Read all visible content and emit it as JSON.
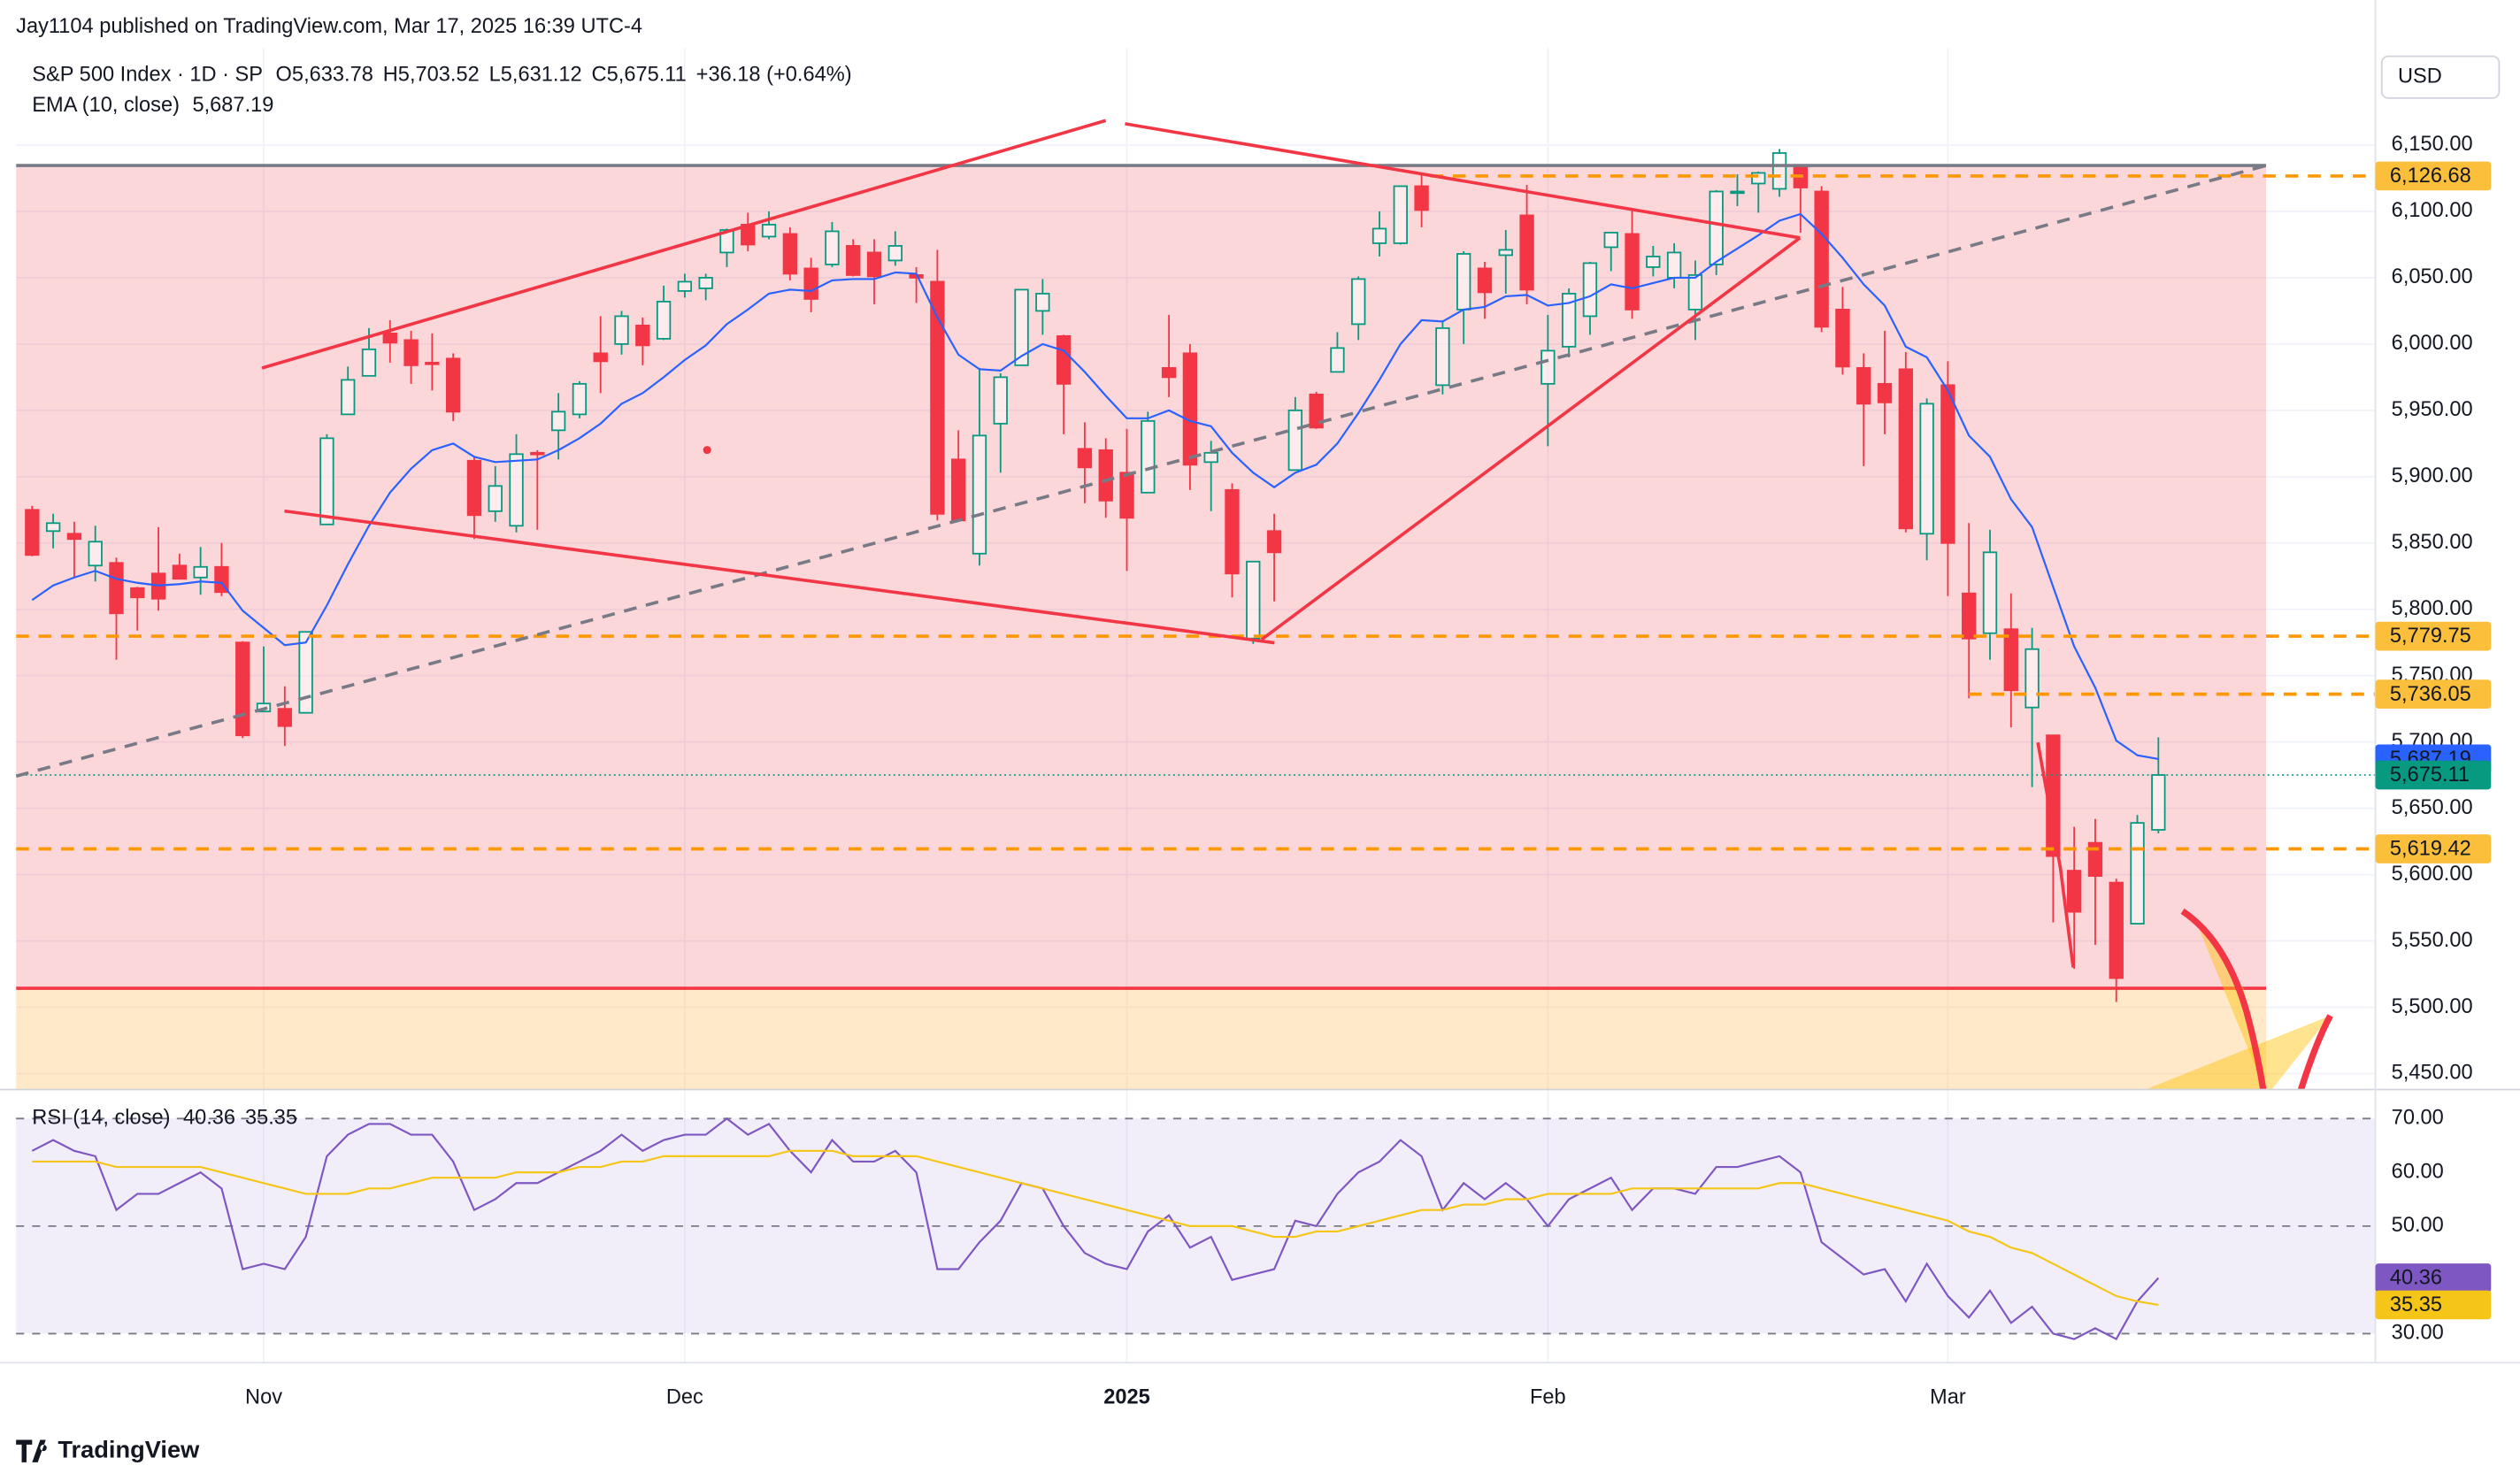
{
  "published": "Jay1104 published on TradingView.com, Mar 17, 2025 16:39 UTC-4",
  "currency": "USD",
  "brand": "TradingView",
  "chart_data": [
    {
      "type": "candlestick",
      "title": "S&P 500 Index · 1D · SP",
      "ohlc_legend": [
        {
          "key": "O",
          "text": "5,633.78"
        },
        {
          "key": "H",
          "text": "5,703.52"
        },
        {
          "key": "L",
          "text": "5,631.12"
        },
        {
          "key": "C",
          "text": "5,675.11"
        }
      ],
      "change": "+36.18 (+0.64%)",
      "categories": [
        null,
        null,
        null,
        null,
        null,
        null,
        null,
        null,
        null,
        null,
        null,
        "Nov",
        null,
        null,
        null,
        null,
        null,
        null,
        null,
        null,
        null,
        null,
        null,
        null,
        null,
        null,
        null,
        null,
        null,
        null,
        null,
        "Dec",
        null,
        null,
        null,
        null,
        null,
        null,
        null,
        null,
        null,
        null,
        null,
        null,
        null,
        null,
        null,
        null,
        null,
        null,
        null,
        null,
        "2025",
        null,
        null,
        null,
        null,
        null,
        null,
        null,
        null,
        null,
        null,
        null,
        null,
        null,
        null,
        null,
        null,
        null,
        null,
        null,
        "Feb",
        null,
        null,
        null,
        null,
        null,
        null,
        null,
        null,
        null,
        null,
        null,
        null,
        null,
        null,
        null,
        null,
        null,
        null,
        "Mar",
        null,
        null,
        null,
        null,
        null,
        null,
        null,
        null,
        null,
        null
      ],
      "open": [
        5875,
        5859,
        5857,
        5833,
        5835,
        5816,
        5827,
        5833,
        5824,
        5832,
        5775,
        5723,
        5725,
        5722,
        5864,
        5947,
        5976,
        6008,
        6003,
        5986,
        5989,
        5912,
        5874,
        5863,
        5918,
        5935,
        5947,
        5993,
        6000,
        6014,
        6004,
        6040,
        6042,
        6069,
        6090,
        6081,
        6083,
        6057,
        6060,
        6074,
        6069,
        6063,
        6052,
        6047,
        5913,
        5842,
        5940,
        5984,
        6025,
        6006,
        5921,
        5920,
        5903,
        5888,
        5982,
        5993,
        5911,
        5890,
        5778,
        5859,
        5905,
        5962,
        5979,
        6015,
        6076,
        6076,
        6119,
        5969,
        6026,
        6057,
        6067,
        6097,
        5970,
        5998,
        6021,
        6073,
        6083,
        6058,
        6050,
        6026,
        6060,
        6115,
        6121,
        6117,
        6134,
        6115,
        6026,
        5982,
        5970,
        5981,
        5857,
        5969,
        5812,
        5782,
        5785,
        5726,
        5705,
        5603,
        5624,
        5594,
        5563,
        5633.78
      ],
      "high": [
        5878,
        5872,
        5866,
        5863,
        5839,
        5817,
        5862,
        5842,
        5847,
        5850,
        5776,
        5772,
        5742,
        5783,
        5932,
        5983,
        6012,
        6018,
        6010,
        6008,
        5993,
        5915,
        5908,
        5932,
        5920,
        5963,
        5972,
        6021,
        6025,
        6020,
        6044,
        6053,
        6053,
        6087,
        6099,
        6100,
        6088,
        6065,
        6092,
        6079,
        6079,
        6085,
        6058,
        6071,
        5935,
        5982,
        5978,
        6041,
        6049,
        6007,
        5941,
        5929,
        5936,
        5949,
        6022,
        6000,
        5927,
        5895,
        5836,
        5872,
        5960,
        5964,
        6009,
        6051,
        6100,
        6119,
        6128,
        6018,
        6070,
        6062,
        6086,
        6120,
        6022,
        6042,
        6062,
        6084,
        6101,
        6074,
        6076,
        6063,
        6116,
        6128,
        6130,
        6147,
        6134,
        6119,
        6043,
        5993,
        6010,
        5994,
        5959,
        5987,
        5865,
        5860,
        5812,
        5786,
        5705,
        5636,
        5642,
        5597,
        5645,
        5703.52
      ],
      "low": [
        5840,
        5846,
        5824,
        5821,
        5762,
        5784,
        5799,
        5823,
        5811,
        5810,
        5703,
        5723,
        5697,
        5722,
        5864,
        5947,
        5976,
        5986,
        5970,
        5965,
        5942,
        5853,
        5866,
        5858,
        5860,
        5913,
        5944,
        5963,
        5992,
        5984,
        6003,
        6035,
        6033,
        6058,
        6070,
        6079,
        6048,
        6024,
        6058,
        6051,
        6030,
        6059,
        6031,
        5867,
        5866,
        5833,
        5903,
        5984,
        6007,
        5932,
        5880,
        5869,
        5829,
        5888,
        5960,
        5890,
        5874,
        5809,
        5774,
        5806,
        5905,
        5936,
        5979,
        6003,
        6066,
        6075,
        6088,
        5962,
        6000,
        6019,
        6038,
        6030,
        5923,
        5990,
        6007,
        6055,
        6019,
        6051,
        6042,
        6003,
        6052,
        6104,
        6099,
        6111,
        6084,
        6009,
        5977,
        5908,
        5932,
        5858,
        5837,
        5810,
        5733,
        5762,
        5711,
        5666,
        5564,
        5529,
        5547,
        5504,
        5563,
        5631.12
      ],
      "close": [
        5841,
        5865,
        5853,
        5851,
        5797,
        5809,
        5808,
        5823,
        5832,
        5813,
        5705,
        5729,
        5712,
        5783,
        5929,
        5973,
        5996,
        6001,
        5984,
        5985,
        5949,
        5871,
        5893,
        5917,
        5917,
        5949,
        5970,
        5987,
        6021,
        5999,
        6032,
        6047,
        6050,
        6086,
        6075,
        6090,
        6053,
        6034,
        6085,
        6052,
        6051,
        6074,
        6050,
        5872,
        5867,
        5931,
        5975,
        6041,
        6038,
        5970,
        5907,
        5882,
        5869,
        5942,
        5975,
        5909,
        5918,
        5827,
        5836,
        5843,
        5950,
        5937,
        5997,
        6049,
        6087,
        6119,
        6101,
        6012,
        6068,
        6039,
        6071,
        6041,
        5995,
        6038,
        6061,
        6084,
        6026,
        6066,
        6069,
        6052,
        6115,
        6115,
        6129,
        6144,
        6118,
        6013,
        5983,
        5955,
        5956,
        5861,
        5955,
        5850,
        5778,
        5843,
        5739,
        5770,
        5614,
        5572,
        5599,
        5522,
        5639,
        5675.11
      ],
      "close_label": "5,675.11",
      "up_color": "#089981",
      "down_color": "#f23645",
      "series": [
        {
          "name": "EMA (10, close)",
          "color": "#2962ff",
          "last_label": "5,687.19",
          "values": [
            5807,
            5818,
            5824,
            5829,
            5823,
            5820,
            5818,
            5819,
            5821,
            5820,
            5799,
            5786,
            5773,
            5775,
            5803,
            5834,
            5863,
            5888,
            5906,
            5920,
            5925,
            5915,
            5911,
            5912,
            5913,
            5920,
            5929,
            5940,
            5955,
            5963,
            5975,
            5988,
            5999,
            6015,
            6026,
            6038,
            6041,
            6040,
            6048,
            6049,
            6049,
            6054,
            6053,
            6020,
            5992,
            5981,
            5980,
            5991,
            6000,
            5995,
            5979,
            5961,
            5944,
            5944,
            5950,
            5942,
            5938,
            5918,
            5903,
            5892,
            5903,
            5909,
            5925,
            5948,
            5973,
            6000,
            6018,
            6017,
            6026,
            6028,
            6036,
            6037,
            6029,
            6031,
            6036,
            6045,
            6042,
            6046,
            6050,
            6050,
            6062,
            6072,
            6082,
            6093,
            6098,
            6083,
            6065,
            6045,
            6029,
            5998,
            5990,
            5965,
            5931,
            5915,
            5883,
            5862,
            5817,
            5772,
            5741,
            5701,
            5690,
            5687.19
          ]
        }
      ],
      "levels": [
        {
          "value": 6126.68,
          "label": "6,126.68"
        },
        {
          "value": 5779.75,
          "label": "5,779.75"
        },
        {
          "value": 5736.05,
          "label": "5,736.05"
        },
        {
          "value": 5619.42,
          "label": "5,619.42"
        }
      ],
      "level_color": "#ff9800",
      "ylim": [
        5438,
        6223
      ],
      "yticks": [
        {
          "value": 5450,
          "label": "5,450.00"
        },
        {
          "value": 5500,
          "label": "5,500.00"
        },
        {
          "value": 5550,
          "label": "5,550.00"
        },
        {
          "value": 5600,
          "label": "5,600.00"
        },
        {
          "value": 5650,
          "label": "5,650.00"
        },
        {
          "value": 5700,
          "label": "5,700.00"
        },
        {
          "value": 5750,
          "label": "5,750.00"
        },
        {
          "value": 5800,
          "label": "5,800.00"
        },
        {
          "value": 5850,
          "label": "5,850.00"
        },
        {
          "value": 5900,
          "label": "5,900.00"
        },
        {
          "value": 5950,
          "label": "5,950.00"
        },
        {
          "value": 6000,
          "label": "6,000.00"
        },
        {
          "value": 6050,
          "label": "6,050.00"
        },
        {
          "value": 6100,
          "label": "6,100.00"
        },
        {
          "value": 6150,
          "label": "6,150.00"
        }
      ],
      "grid": true
    },
    {
      "type": "line",
      "series": [
        {
          "name": "RSI (14, close)",
          "color": "#7e57c2",
          "last_label": "40.36",
          "values": [
            64,
            66,
            64,
            63,
            53,
            56,
            56,
            58,
            60,
            57,
            42,
            43,
            42,
            48,
            63,
            67,
            69,
            69,
            67,
            67,
            62,
            53,
            55,
            58,
            58,
            60,
            62,
            64,
            67,
            64,
            66,
            67,
            67,
            70,
            67,
            69,
            64,
            60,
            66,
            62,
            62,
            64,
            60,
            42,
            42,
            47,
            51,
            58,
            57,
            50,
            45,
            43,
            42,
            49,
            52,
            46,
            48,
            40,
            41,
            42,
            51,
            50,
            56,
            60,
            62,
            66,
            63,
            53,
            58,
            55,
            58,
            55,
            50,
            55,
            57,
            59,
            53,
            57,
            57,
            56,
            61,
            61,
            62,
            63,
            60,
            47,
            44,
            41,
            42,
            36,
            43,
            37,
            33,
            38,
            32,
            35,
            30,
            29,
            31,
            29,
            36,
            40.36
          ]
        },
        {
          "color": "#f5c518",
          "last_label": "35.35",
          "values": [
            62,
            62,
            62,
            62,
            61,
            61,
            61,
            61,
            61,
            60,
            59,
            58,
            57,
            56,
            56,
            56,
            57,
            57,
            58,
            59,
            59,
            59,
            59,
            60,
            60,
            60,
            61,
            61,
            62,
            62,
            63,
            63,
            63,
            63,
            63,
            63,
            64,
            64,
            64,
            63,
            63,
            63,
            63,
            62,
            61,
            60,
            59,
            58,
            57,
            56,
            55,
            54,
            53,
            52,
            51,
            50,
            50,
            50,
            49,
            48,
            48,
            49,
            49,
            50,
            51,
            52,
            53,
            53,
            54,
            54,
            55,
            55,
            56,
            56,
            56,
            56,
            57,
            57,
            57,
            57,
            57,
            57,
            57,
            58,
            58,
            57,
            56,
            55,
            54,
            53,
            52,
            51,
            49,
            48,
            46,
            45,
            43,
            41,
            39,
            37,
            36,
            35.35
          ]
        }
      ],
      "band": [
        30,
        70
      ],
      "level_lines": [
        70,
        50,
        30
      ],
      "ylim": [
        24.6,
        75.4
      ],
      "yticks": [
        {
          "value": 30,
          "label": "30.00"
        },
        {
          "value": 50,
          "label": "50.00"
        },
        {
          "value": 60,
          "label": "60.00"
        },
        {
          "value": 70,
          "label": "70.00"
        }
      ]
    }
  ]
}
